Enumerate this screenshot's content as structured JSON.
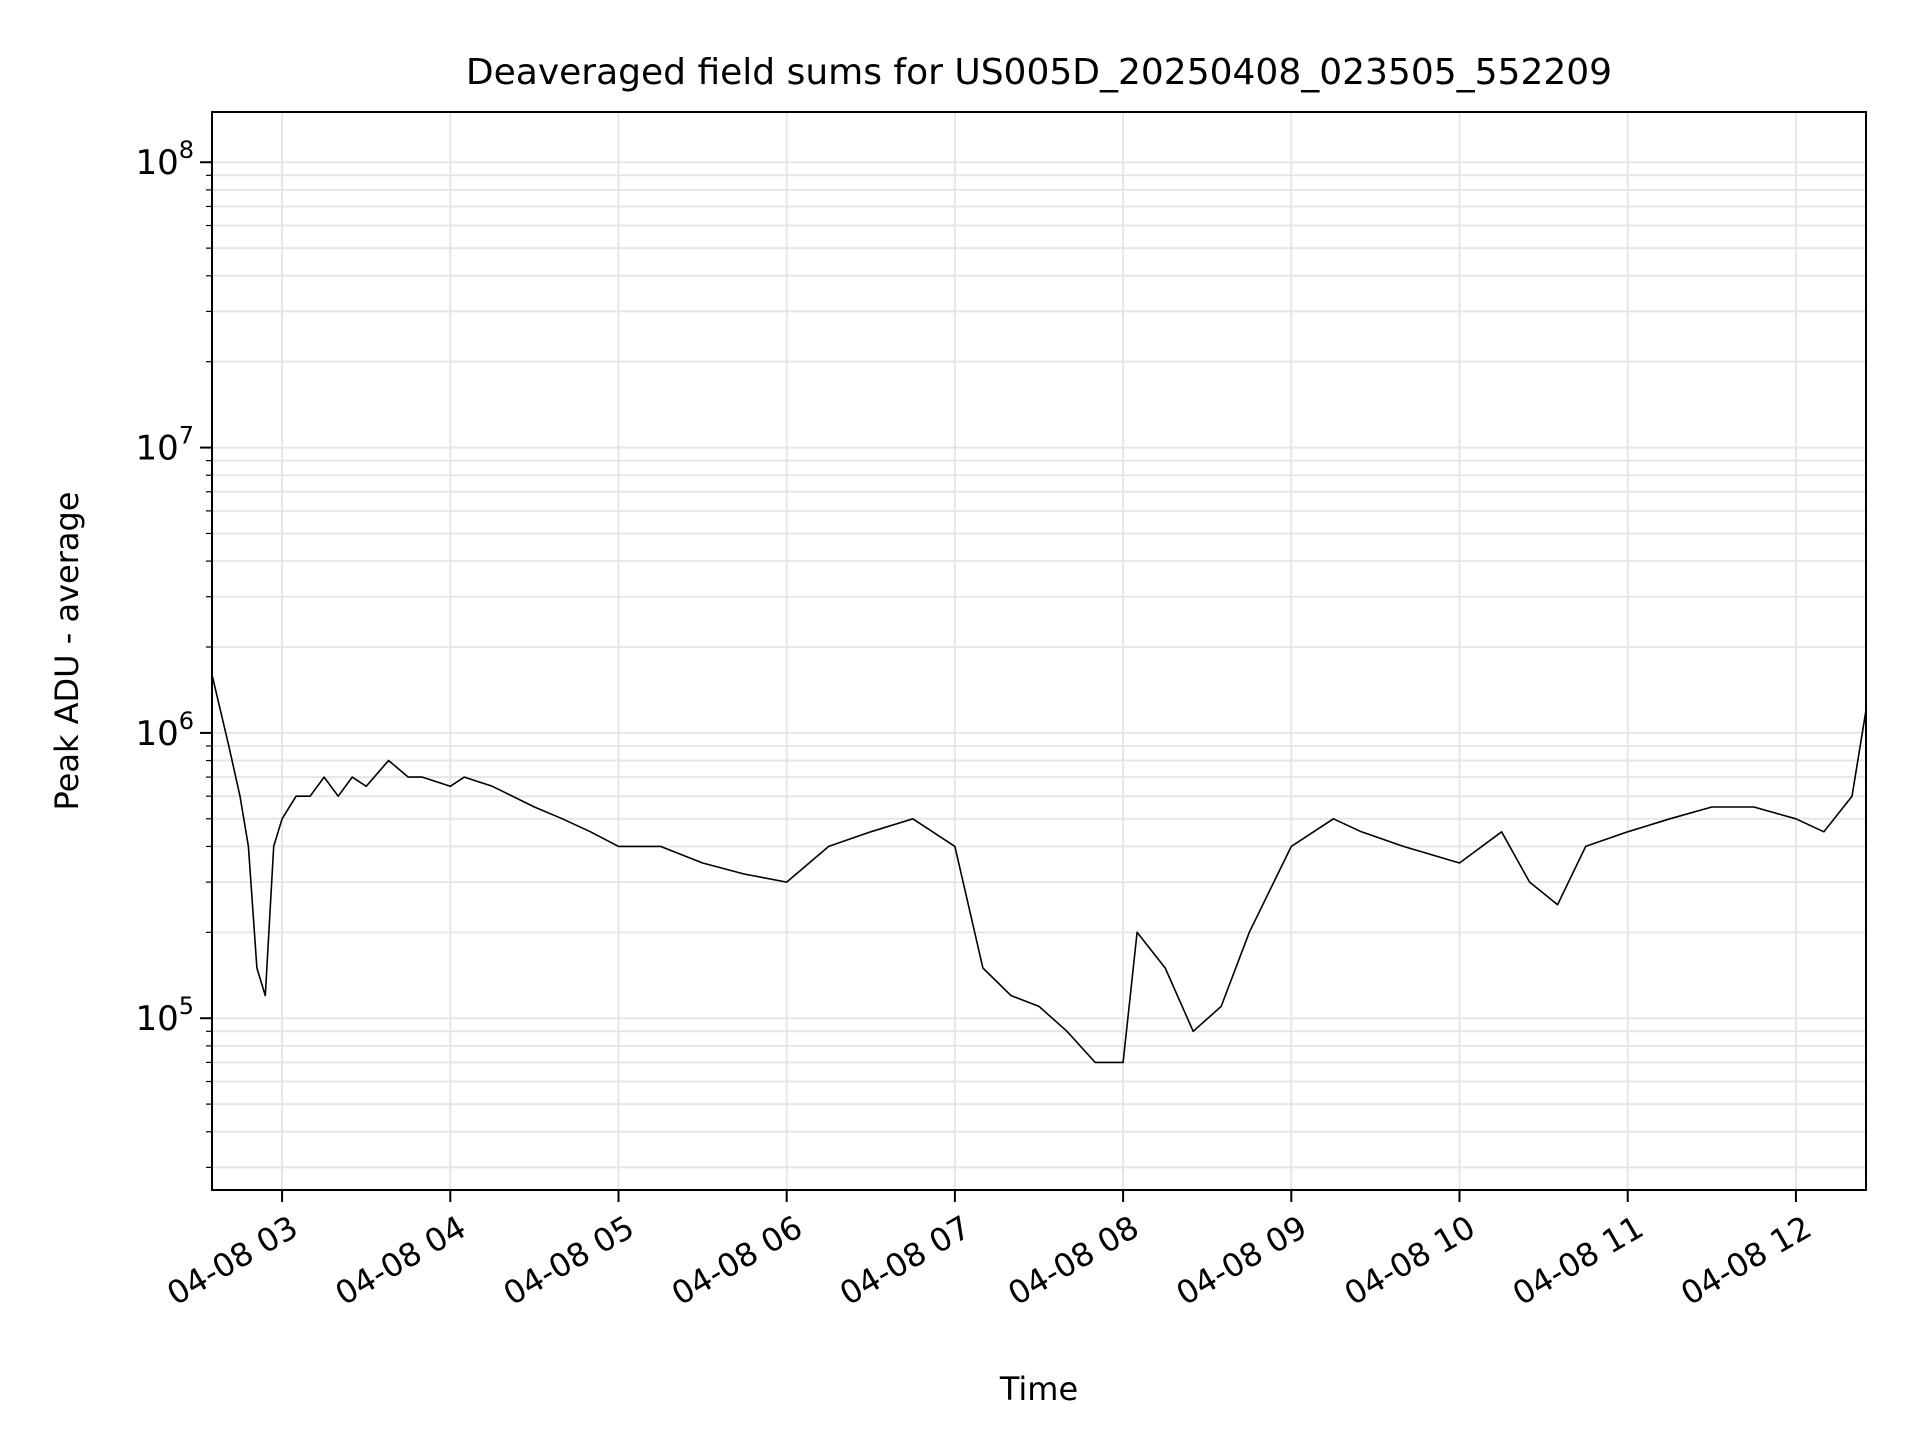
{
  "chart_data": {
    "type": "line",
    "title": "Deaveraged field sums for US005D_20250408_023505_552209",
    "xlabel": "Time",
    "ylabel": "Peak ADU - average",
    "y_scale": "log",
    "ylim": [
      25000,
      150000000
    ],
    "xlim": [
      "2025-04-08 02:35",
      "2025-04-08 12:25"
    ],
    "x_ticks": [
      {
        "t": "2025-04-08 03:00",
        "label": "04-08 03"
      },
      {
        "t": "2025-04-08 04:00",
        "label": "04-08 04"
      },
      {
        "t": "2025-04-08 05:00",
        "label": "04-08 05"
      },
      {
        "t": "2025-04-08 06:00",
        "label": "04-08 06"
      },
      {
        "t": "2025-04-08 07:00",
        "label": "04-08 07"
      },
      {
        "t": "2025-04-08 08:00",
        "label": "04-08 08"
      },
      {
        "t": "2025-04-08 09:00",
        "label": "04-08 09"
      },
      {
        "t": "2025-04-08 10:00",
        "label": "04-08 10"
      },
      {
        "t": "2025-04-08 11:00",
        "label": "04-08 11"
      },
      {
        "t": "2025-04-08 12:00",
        "label": "04-08 12"
      }
    ],
    "y_ticks": [
      {
        "value": 100000,
        "base": "10",
        "exp": "5"
      },
      {
        "value": 1000000,
        "base": "10",
        "exp": "6"
      },
      {
        "value": 10000000,
        "base": "10",
        "exp": "7"
      },
      {
        "value": 100000000,
        "base": "10",
        "exp": "8"
      }
    ],
    "grid": true,
    "legend": "none",
    "series": [
      {
        "color": "#000000",
        "x": [
          "2025-04-08 02:35",
          "2025-04-08 02:38",
          "2025-04-08 02:41",
          "2025-04-08 02:45",
          "2025-04-08 02:48",
          "2025-04-08 02:51",
          "2025-04-08 02:54",
          "2025-04-08 02:57",
          "2025-04-08 03:00",
          "2025-04-08 03:05",
          "2025-04-08 03:10",
          "2025-04-08 03:15",
          "2025-04-08 03:20",
          "2025-04-08 03:25",
          "2025-04-08 03:30",
          "2025-04-08 03:38",
          "2025-04-08 03:45",
          "2025-04-08 03:50",
          "2025-04-08 04:00",
          "2025-04-08 04:05",
          "2025-04-08 04:15",
          "2025-04-08 04:30",
          "2025-04-08 04:40",
          "2025-04-08 04:50",
          "2025-04-08 05:00",
          "2025-04-08 05:15",
          "2025-04-08 05:30",
          "2025-04-08 05:45",
          "2025-04-08 06:00",
          "2025-04-08 06:15",
          "2025-04-08 06:30",
          "2025-04-08 06:45",
          "2025-04-08 07:00",
          "2025-04-08 07:10",
          "2025-04-08 07:20",
          "2025-04-08 07:30",
          "2025-04-08 07:40",
          "2025-04-08 07:50",
          "2025-04-08 08:00",
          "2025-04-08 08:05",
          "2025-04-08 08:15",
          "2025-04-08 08:25",
          "2025-04-08 08:35",
          "2025-04-08 08:45",
          "2025-04-08 09:00",
          "2025-04-08 09:15",
          "2025-04-08 09:25",
          "2025-04-08 09:40",
          "2025-04-08 10:00",
          "2025-04-08 10:15",
          "2025-04-08 10:25",
          "2025-04-08 10:35",
          "2025-04-08 10:45",
          "2025-04-08 11:00",
          "2025-04-08 11:15",
          "2025-04-08 11:30",
          "2025-04-08 11:45",
          "2025-04-08 12:00",
          "2025-04-08 12:10",
          "2025-04-08 12:20",
          "2025-04-08 12:25"
        ],
        "y": [
          1600000,
          1200000,
          900000,
          600000,
          400000,
          150000,
          120000,
          400000,
          500000,
          600000,
          600000,
          700000,
          600000,
          700000,
          650000,
          800000,
          700000,
          700000,
          650000,
          700000,
          650000,
          550000,
          500000,
          450000,
          400000,
          400000,
          350000,
          320000,
          300000,
          400000,
          450000,
          500000,
          400000,
          150000,
          120000,
          110000,
          90000,
          70000,
          70000,
          200000,
          150000,
          90000,
          110000,
          200000,
          400000,
          500000,
          450000,
          400000,
          350000,
          450000,
          300000,
          250000,
          400000,
          450000,
          500000,
          550000,
          550000,
          500000,
          450000,
          600000,
          1200000
        ]
      }
    ]
  }
}
